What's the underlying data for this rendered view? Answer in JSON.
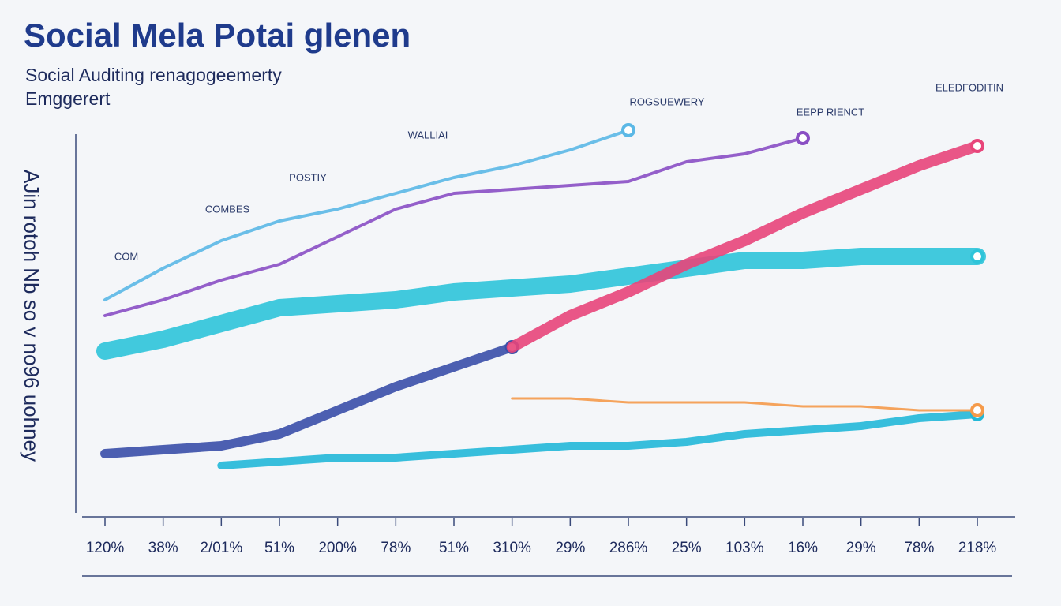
{
  "chart_data": {
    "type": "line",
    "title": "Social Mela Potai glenen",
    "subtitle": [
      "Social Auditing renagogeemerty",
      "Emggerert"
    ],
    "y_label": "AJin rotoh Nb so v no96 uohney",
    "categories": [
      "120%",
      "38%",
      "2/01%",
      "51%",
      "200%",
      "78%",
      "51%",
      "310%",
      "29%",
      "286%",
      "25%",
      "103%",
      "16%",
      "29%",
      "78%",
      "218%"
    ],
    "ylim": [
      0,
      100
    ],
    "annotations": [
      "COM",
      "COMBES",
      "POSTIY",
      "WALLIAI",
      "ROGSUEWERY",
      "EEPP RIENCT",
      "ELEDFODITIN"
    ],
    "series": [
      {
        "color": "#2ec4d9",
        "stroke_width": 22,
        "values": [
          39,
          42,
          46,
          50,
          51,
          52,
          54,
          55,
          56,
          58,
          60,
          62,
          62,
          63,
          63,
          63
        ]
      },
      {
        "color": "#22b8d8",
        "stroke_width": 10,
        "values": [
          null,
          null,
          10,
          11,
          12,
          12,
          13,
          14,
          15,
          15,
          16,
          18,
          19,
          20,
          22,
          23
        ]
      },
      {
        "color": "#f59a4a",
        "stroke_width": 3,
        "values": [
          null,
          null,
          null,
          null,
          null,
          null,
          null,
          27,
          27,
          26,
          26,
          26,
          25,
          25,
          24,
          24
        ]
      },
      {
        "color": "#5bb8e6",
        "stroke_width": 4,
        "values": [
          52,
          60,
          67,
          72,
          75,
          79,
          83,
          86,
          90,
          95,
          null,
          null,
          null,
          null,
          null,
          null
        ]
      },
      {
        "color": "#8a4fc4",
        "stroke_width": 4,
        "values": [
          48,
          52,
          57,
          61,
          68,
          75,
          79,
          80,
          81,
          82,
          87,
          89,
          93,
          null,
          null,
          null
        ]
      },
      {
        "color": "#3a4fa8",
        "stroke_width": 12,
        "values": [
          13,
          14,
          15,
          18,
          24,
          30,
          35,
          40,
          null,
          null,
          null,
          null,
          null,
          null,
          null,
          null
        ]
      },
      {
        "color": "#e8457a",
        "stroke_width": 14,
        "values": [
          null,
          null,
          null,
          null,
          null,
          null,
          null,
          40,
          48,
          54,
          61,
          67,
          74,
          80,
          86,
          91
        ]
      }
    ]
  }
}
